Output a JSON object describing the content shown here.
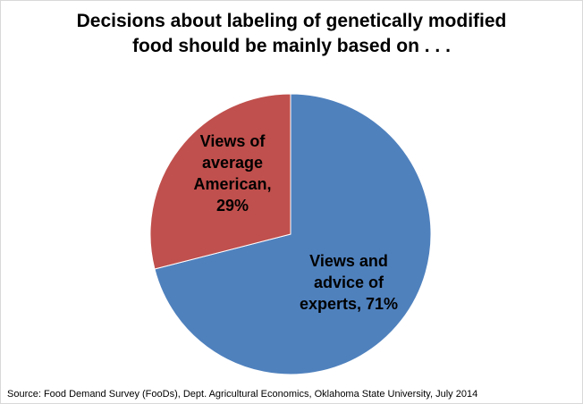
{
  "chart_data": {
    "type": "pie",
    "title_lines": [
      "Decisions about labeling of genetically modified",
      "food should be mainly based on . . ."
    ],
    "slices": [
      {
        "name_lines": [
          "Views and",
          "advice of",
          "experts, 71%"
        ],
        "value": 71,
        "color": "#4f81bd"
      },
      {
        "name_lines": [
          "Views of",
          "average",
          "American,",
          "29%"
        ],
        "value": 29,
        "color": "#c0504d"
      }
    ],
    "legend": "none",
    "source": "Source:  Food Demand Survey (FooDs), Dept.  Agricultural Economics, Oklahoma State University, July 2014"
  }
}
